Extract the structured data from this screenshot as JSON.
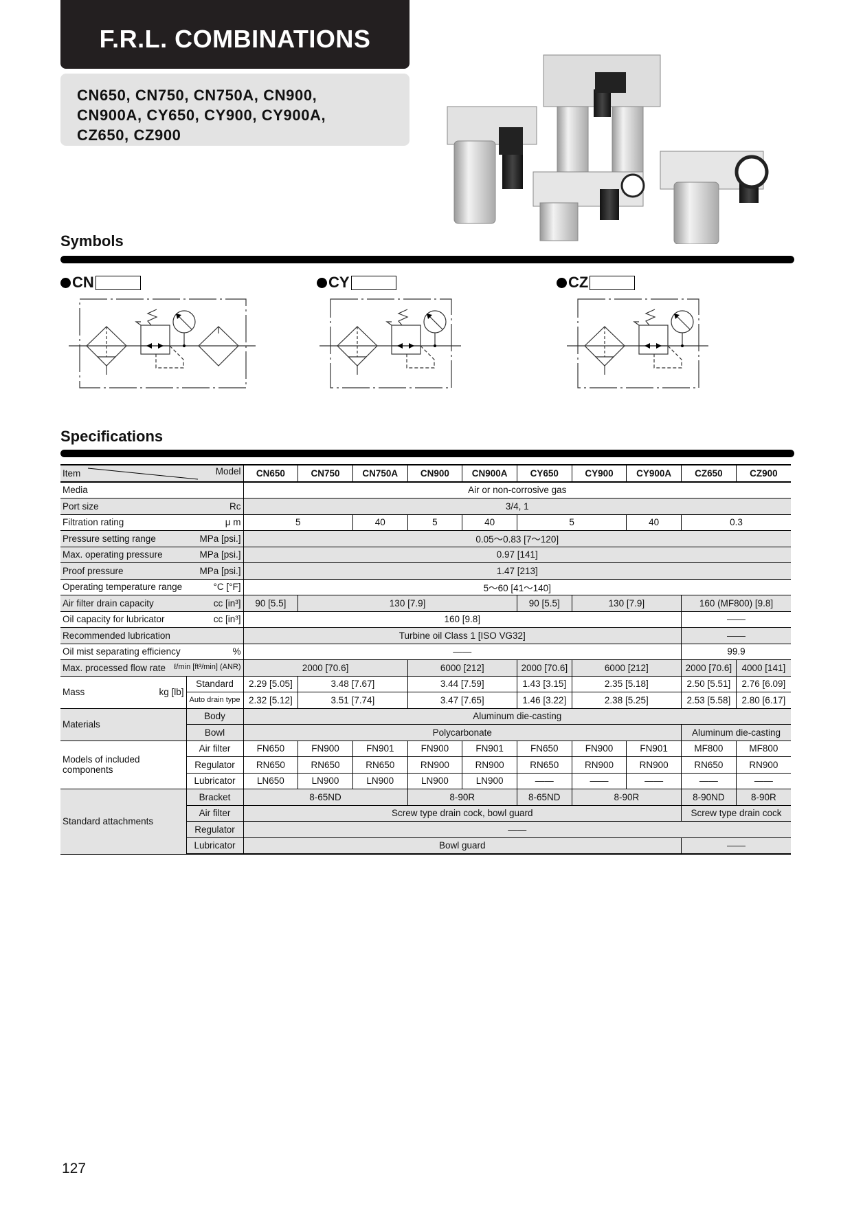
{
  "header": {
    "title": "F.R.L. COMBINATIONS",
    "models_lines": [
      "CN650, CN750, CN750A, CN900,",
      "CN900A, CY650, CY900, CY900A,",
      "CZ650, CZ900"
    ]
  },
  "symbols": {
    "heading": "Symbols",
    "items": [
      {
        "label": "CN",
        "type": "filter-regulator-lubricator"
      },
      {
        "label": "CY",
        "type": "filter-regulator"
      },
      {
        "label": "CZ",
        "type": "mist-separator-regulator"
      }
    ]
  },
  "specifications": {
    "heading": "Specifications",
    "item_label": "Item",
    "model_label": "Model",
    "models": [
      "CN650",
      "CN750",
      "CN750A",
      "CN900",
      "CN900A",
      "CY650",
      "CY900",
      "CY900A",
      "CZ650",
      "CZ900"
    ],
    "rows": [
      {
        "label": "Media",
        "unit": "",
        "shaded": false,
        "cells": [
          {
            "v": "Air or non-corrosive gas",
            "span": 10
          }
        ]
      },
      {
        "label": "Port size",
        "unit": "Rc",
        "shaded": true,
        "cells": [
          {
            "v": "3/4, 1",
            "span": 10
          }
        ]
      },
      {
        "label": "Filtration rating",
        "unit": "μ m",
        "shaded": false,
        "cells": [
          {
            "v": "5",
            "span": 2
          },
          {
            "v": "40",
            "span": 1
          },
          {
            "v": "5",
            "span": 1
          },
          {
            "v": "40",
            "span": 1
          },
          {
            "v": "5",
            "span": 2
          },
          {
            "v": "40",
            "span": 1
          },
          {
            "v": "0.3",
            "span": 2
          }
        ]
      },
      {
        "label": "Pressure setting range",
        "unit": "MPa [psi.]",
        "shaded": true,
        "cells": [
          {
            "v": "0.05～0.83 [7～120]",
            "span": 10
          }
        ]
      },
      {
        "label": "Max. operating pressure",
        "unit": "MPa [psi.]",
        "shaded": true,
        "cells": [
          {
            "v": "0.97 [141]",
            "span": 10
          }
        ]
      },
      {
        "label": "Proof pressure",
        "unit": "MPa [psi.]",
        "shaded": true,
        "cells": [
          {
            "v": "1.47 [213]",
            "span": 10
          }
        ]
      },
      {
        "label": "Operating temperature range",
        "unit": "°C [°F]",
        "shaded": false,
        "cells": [
          {
            "v": "5～60 [41～140]",
            "span": 10
          }
        ]
      },
      {
        "label": "Air filter drain capacity",
        "unit": "cc [in³]",
        "shaded": true,
        "cells": [
          {
            "v": "90 [5.5]",
            "span": 1
          },
          {
            "v": "130 [7.9]",
            "span": 4
          },
          {
            "v": "90 [5.5]",
            "span": 1
          },
          {
            "v": "130 [7.9]",
            "span": 2
          },
          {
            "v": "160 (MF800) [9.8]",
            "span": 2
          }
        ]
      },
      {
        "label": "Oil capacity for lubricator",
        "unit": "cc [in³]",
        "shaded": false,
        "cells": [
          {
            "v": "160 [9.8]",
            "span": 8
          },
          {
            "v": "——",
            "span": 2
          }
        ]
      },
      {
        "label": "Recommended lubrication",
        "unit": "",
        "shaded": true,
        "cells": [
          {
            "v": "Turbine oil Class 1 [ISO VG32]",
            "span": 8
          },
          {
            "v": "——",
            "span": 2
          }
        ]
      },
      {
        "label": "Oil mist separating efficiency",
        "unit": "%",
        "shaded": false,
        "cells": [
          {
            "v": "——",
            "span": 8
          },
          {
            "v": "99.9",
            "span": 2
          }
        ]
      },
      {
        "label": "Max. processed flow rate",
        "unit": "ℓ/min [ft³/min] (ANR)",
        "small_unit": true,
        "shaded": true,
        "cells": [
          {
            "v": "2000 [70.6]",
            "span": 3
          },
          {
            "v": "6000 [212]",
            "span": 2
          },
          {
            "v": "2000 [70.6]",
            "span": 1
          },
          {
            "v": "6000 [212]",
            "span": 2
          },
          {
            "v": "2000 [70.6]",
            "span": 1
          },
          {
            "v": "4000 [141]",
            "span": 1
          }
        ]
      },
      {
        "label": "Mass",
        "unit": "kg [lb]",
        "shaded": false,
        "subrows": [
          {
            "label": "Standard",
            "cells": [
              {
                "v": "2.29 [5.05]",
                "span": 1
              },
              {
                "v": "3.48 [7.67]",
                "span": 2
              },
              {
                "v": "3.44 [7.59]",
                "span": 2
              },
              {
                "v": "1.43 [3.15]",
                "span": 1
              },
              {
                "v": "2.35 [5.18]",
                "span": 2
              },
              {
                "v": "2.50 [5.51]",
                "span": 1
              },
              {
                "v": "2.76 [6.09]",
                "span": 1
              }
            ]
          },
          {
            "label": "Auto drain type",
            "small": true,
            "cells": [
              {
                "v": "2.32 [5.12]",
                "span": 1
              },
              {
                "v": "3.51 [7.74]",
                "span": 2
              },
              {
                "v": "3.47 [7.65]",
                "span": 2
              },
              {
                "v": "1.46 [3.22]",
                "span": 1
              },
              {
                "v": "2.38 [5.25]",
                "span": 2
              },
              {
                "v": "2.53 [5.58]",
                "span": 1
              },
              {
                "v": "2.80 [6.17]",
                "span": 1
              }
            ]
          }
        ]
      },
      {
        "label": "Materials",
        "unit": "",
        "shaded": true,
        "subrows": [
          {
            "label": "Body",
            "cells": [
              {
                "v": "Aluminum die-casting",
                "span": 10
              }
            ]
          },
          {
            "label": "Bowl",
            "cells": [
              {
                "v": "Polycarbonate",
                "span": 8
              },
              {
                "v": "Aluminum die-casting",
                "span": 2
              }
            ]
          }
        ]
      },
      {
        "label": "Models of included components",
        "unit": "",
        "shaded": false,
        "subrows": [
          {
            "label": "Air filter",
            "cells": [
              {
                "v": "FN650",
                "span": 1
              },
              {
                "v": "FN900",
                "span": 1
              },
              {
                "v": "FN901",
                "span": 1
              },
              {
                "v": "FN900",
                "span": 1
              },
              {
                "v": "FN901",
                "span": 1
              },
              {
                "v": "FN650",
                "span": 1
              },
              {
                "v": "FN900",
                "span": 1
              },
              {
                "v": "FN901",
                "span": 1
              },
              {
                "v": "MF800",
                "span": 1
              },
              {
                "v": "MF800",
                "span": 1
              }
            ]
          },
          {
            "label": "Regulator",
            "cells": [
              {
                "v": "RN650",
                "span": 1
              },
              {
                "v": "RN650",
                "span": 1
              },
              {
                "v": "RN650",
                "span": 1
              },
              {
                "v": "RN900",
                "span": 1
              },
              {
                "v": "RN900",
                "span": 1
              },
              {
                "v": "RN650",
                "span": 1
              },
              {
                "v": "RN900",
                "span": 1
              },
              {
                "v": "RN900",
                "span": 1
              },
              {
                "v": "RN650",
                "span": 1
              },
              {
                "v": "RN900",
                "span": 1
              }
            ]
          },
          {
            "label": "Lubricator",
            "cells": [
              {
                "v": "LN650",
                "span": 1
              },
              {
                "v": "LN900",
                "span": 1
              },
              {
                "v": "LN900",
                "span": 1
              },
              {
                "v": "LN900",
                "span": 1
              },
              {
                "v": "LN900",
                "span": 1
              },
              {
                "v": "——",
                "span": 1
              },
              {
                "v": "——",
                "span": 1
              },
              {
                "v": "——",
                "span": 1
              },
              {
                "v": "——",
                "span": 1
              },
              {
                "v": "——",
                "span": 1
              }
            ]
          }
        ]
      },
      {
        "label": "Standard attachments",
        "unit": "",
        "shaded": true,
        "subrows": [
          {
            "label": "Bracket",
            "cells": [
              {
                "v": "8-65ND",
                "span": 3
              },
              {
                "v": "8-90R",
                "span": 2
              },
              {
                "v": "8-65ND",
                "span": 1
              },
              {
                "v": "8-90R",
                "span": 2
              },
              {
                "v": "8-90ND",
                "span": 1
              },
              {
                "v": "8-90R",
                "span": 1
              }
            ]
          },
          {
            "label": "Air filter",
            "cells": [
              {
                "v": "Screw type drain cock, bowl guard",
                "span": 8
              },
              {
                "v": "Screw type drain cock",
                "span": 2
              }
            ]
          },
          {
            "label": "Regulator",
            "cells": [
              {
                "v": "——",
                "span": 10
              }
            ]
          },
          {
            "label": "Lubricator",
            "cells": [
              {
                "v": "Bowl guard",
                "span": 8
              },
              {
                "v": "——",
                "span": 2
              }
            ]
          }
        ]
      }
    ]
  },
  "page_number": "127"
}
